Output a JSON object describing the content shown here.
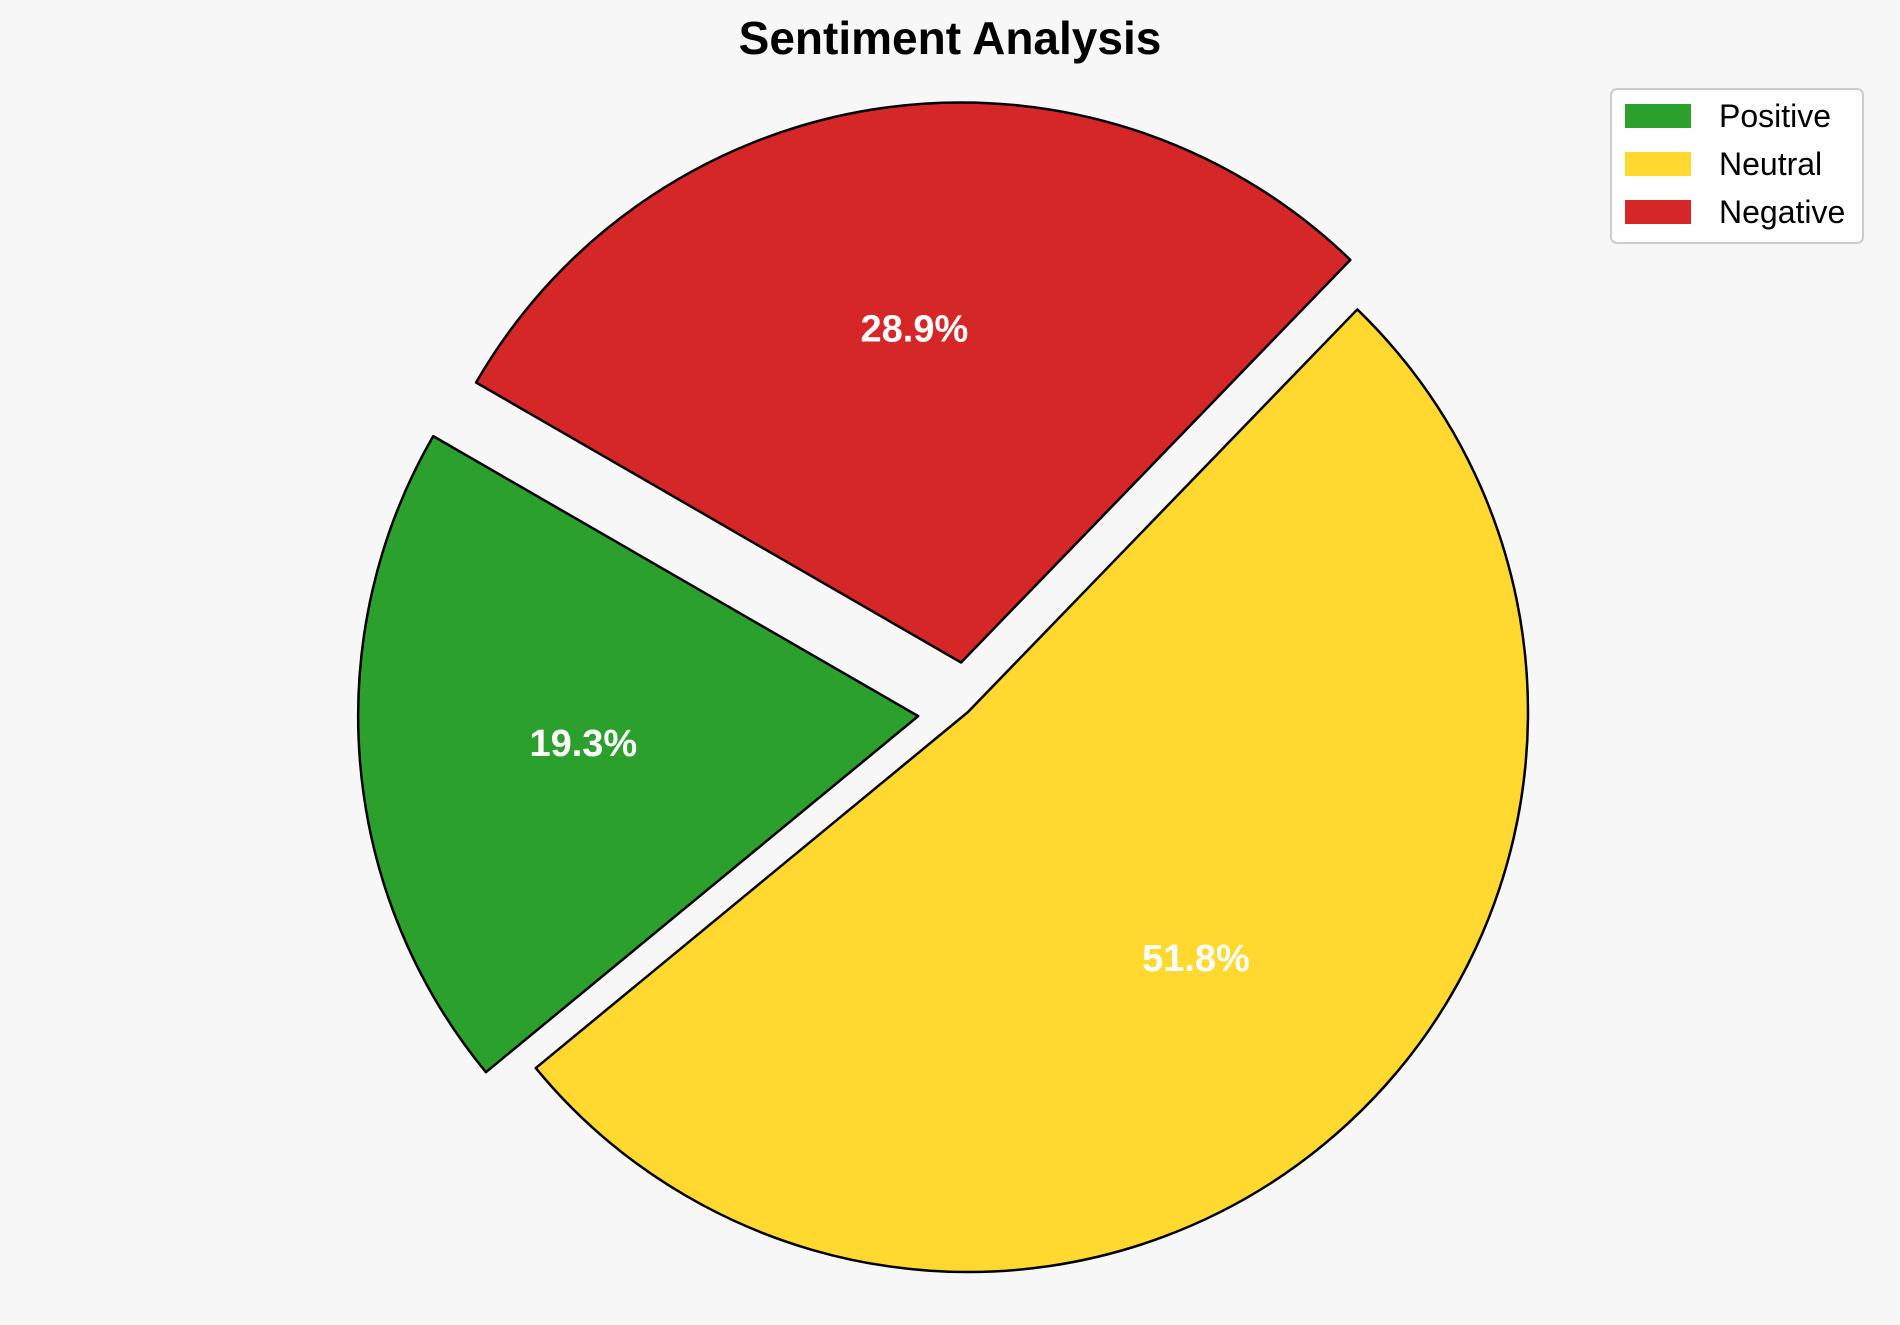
{
  "chart_data": {
    "type": "pie",
    "title": "Sentiment Analysis",
    "slices": [
      {
        "name": "Positive",
        "value": 19.3,
        "label": "19.3%",
        "color": "#2ca02c",
        "exploded": true
      },
      {
        "name": "Neutral",
        "value": 51.8,
        "label": "51.8%",
        "color": "#ffd92f",
        "exploded": false
      },
      {
        "name": "Negative",
        "value": 28.9,
        "label": "28.9%",
        "color": "#d62728",
        "exploded": true
      }
    ],
    "legend": {
      "placement": "top-right",
      "entries": [
        "Positive",
        "Neutral",
        "Negative"
      ]
    },
    "edge_color": "#000000"
  }
}
